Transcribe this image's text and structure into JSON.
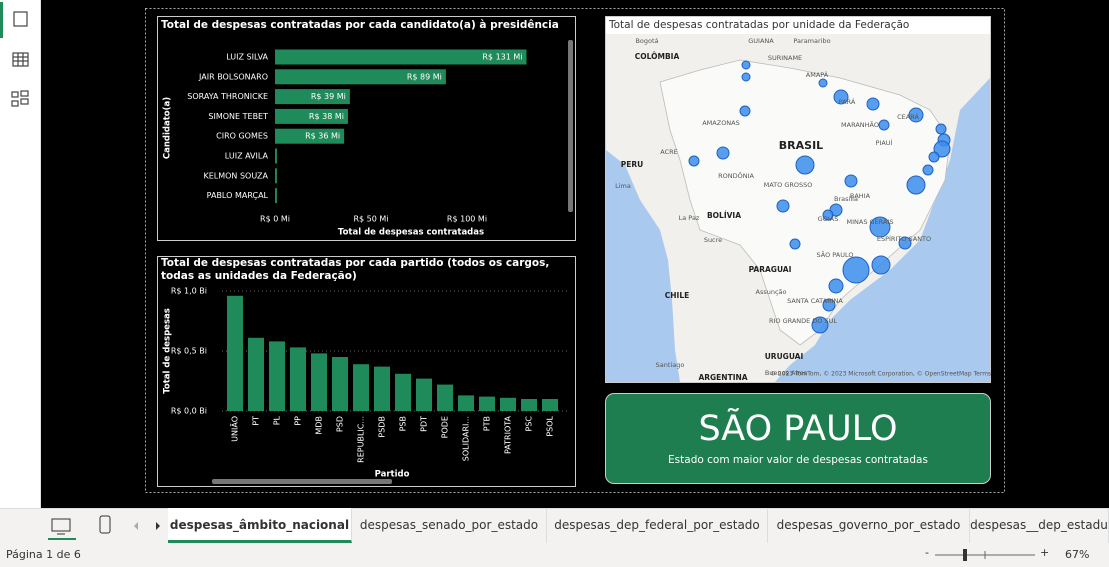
{
  "chart_data": [
    {
      "type": "barh",
      "title": "Total de despesas contratadas por cada candidato(a) à presidência",
      "x_label": "Total de despesas contratadas",
      "y_label": "Candidato(a)",
      "categories": [
        "LUIZ SILVA",
        "JAIR BOLSONARO",
        "SORAYA THRONICKE",
        "SIMONE TEBET",
        "CIRO GOMES",
        "LUIZ AVILA",
        "KELMON SOUZA",
        "PABLO MARÇAL"
      ],
      "values": [
        131,
        89,
        39,
        38,
        36,
        1,
        1,
        1
      ],
      "value_labels": [
        "R$ 131 Mi",
        "R$ 89 Mi",
        "R$ 39 Mi",
        "R$ 38 Mi",
        "R$ 36 Mi",
        null,
        null,
        null
      ],
      "color": "#1f8b5a",
      "xlim": [
        0,
        150
      ],
      "xticks": [
        {
          "value": 0,
          "label": "R$ 0 Mi"
        },
        {
          "value": 50,
          "label": "R$ 50 Mi"
        },
        {
          "value": 100,
          "label": "R$ 100 Mi"
        }
      ]
    },
    {
      "type": "bar",
      "title": "Total de despesas contratadas por cada partido (todos os cargos, todas as unidades da Federação)",
      "x_label": "Partido",
      "y_label": "Total de despesas",
      "categories": [
        "UNIÃO",
        "PT",
        "PL",
        "PP",
        "MDB",
        "PSD",
        "REPUBLIC...",
        "PSDB",
        "PSB",
        "PDT",
        "PODE",
        "SOLIDARI...",
        "PTB",
        "PATRIOTA",
        "PSC",
        "PSOL"
      ],
      "values": [
        0.96,
        0.61,
        0.58,
        0.53,
        0.48,
        0.45,
        0.39,
        0.37,
        0.31,
        0.27,
        0.22,
        0.13,
        0.12,
        0.11,
        0.1,
        0.1
      ],
      "color": "#1f8b5a",
      "ylim": [
        0,
        1
      ],
      "grid": true,
      "yticks": [
        {
          "value": 0,
          "label": "R$ 0,0 Bi"
        },
        {
          "value": 0.5,
          "label": "R$ 0,5 Bi"
        },
        {
          "value": 1,
          "label": "R$ 1,0 Bi"
        }
      ]
    }
  ],
  "map": {
    "title": "Total de despesas contratadas por unidade da Federação",
    "labels": [
      "Bogotá",
      "COLÔMBIA",
      "GUIANA",
      "Paramaribo",
      "SURINAME",
      "AMAPÁ",
      "AMAZONAS",
      "PARÁ",
      "MARANHÃO",
      "CEARÁ",
      "PIAUÍ",
      "BRASIL",
      "PERU",
      "ACRE",
      "RONDÔNIA",
      "MATO GROSSO",
      "BAHIA",
      "Lima",
      "BOLÍVIA",
      "La Paz",
      "Sucre",
      "GOIÁS",
      "Brasília",
      "MINAS GERAIS",
      "ESPÍRITO SANTO",
      "SÃO PAULO",
      "PARAGUAI",
      "Assunção",
      "SANTA CATARINA",
      "RIO GRANDE DO SUL",
      "CHILE",
      "Santiago",
      "URUGUAI",
      "ARGENTINA",
      "Buenos Aires"
    ],
    "attribution": "© 2023 TomTom, © 2023 Microsoft Corporation, © OpenStreetMap  Terms"
  },
  "card": {
    "value": "SÃO PAULO",
    "caption": "Estado com maior valor de despesas contratadas"
  },
  "tabs": [
    "despesas_âmbito_nacional",
    "despesas_senado_por_estado",
    "despesas_dep_federal_por_estado",
    "despesas_governo_por_estado",
    "despesas__dep_estadu"
  ],
  "status": {
    "page": "Página 1 de 6",
    "zoom": "67%",
    "minus": "-",
    "plus": "+"
  }
}
